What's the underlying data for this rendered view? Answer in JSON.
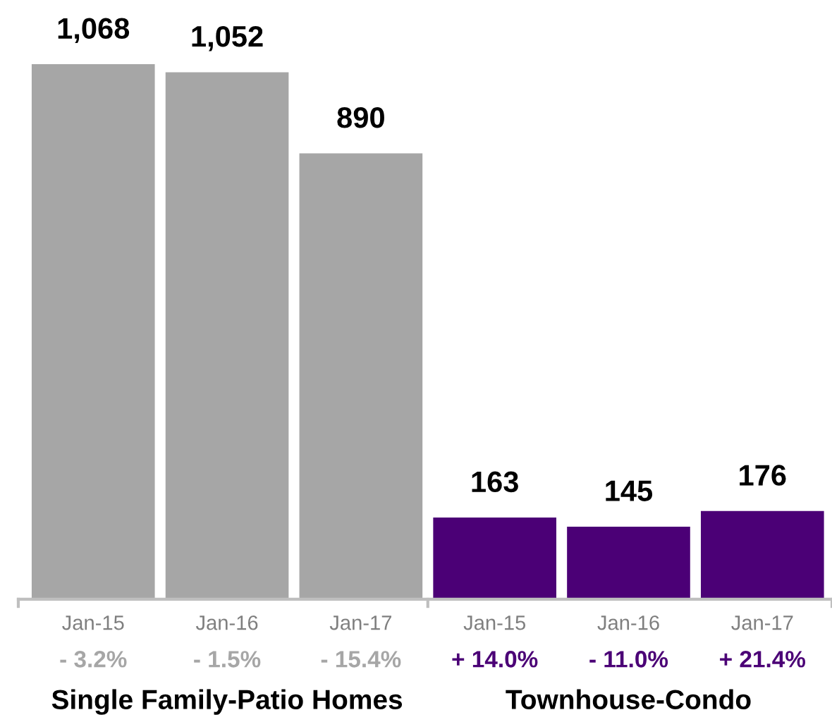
{
  "chart_data": {
    "type": "bar",
    "categories": [
      "Jan-15",
      "Jan-16",
      "Jan-17",
      "Jan-15",
      "Jan-16",
      "Jan-17"
    ],
    "values": [
      1068,
      1052,
      890,
      163,
      145,
      176
    ],
    "colors": [
      "#a6a6a6",
      "#a6a6a6",
      "#a6a6a6",
      "#4b0076",
      "#4b0076",
      "#4b0076"
    ],
    "data_labels": true,
    "value_labels": [
      "1,068",
      "1,052",
      "890",
      "163",
      "145",
      "176"
    ],
    "annotations": [
      "- 3.2%",
      "- 1.5%",
      "- 15.4%",
      "+ 14.0%",
      "- 11.0%",
      "+ 21.4%",
      "Single Family-Patio Homes",
      "Townhouse-Condo"
    ],
    "grid": false,
    "legend": false
  }
}
